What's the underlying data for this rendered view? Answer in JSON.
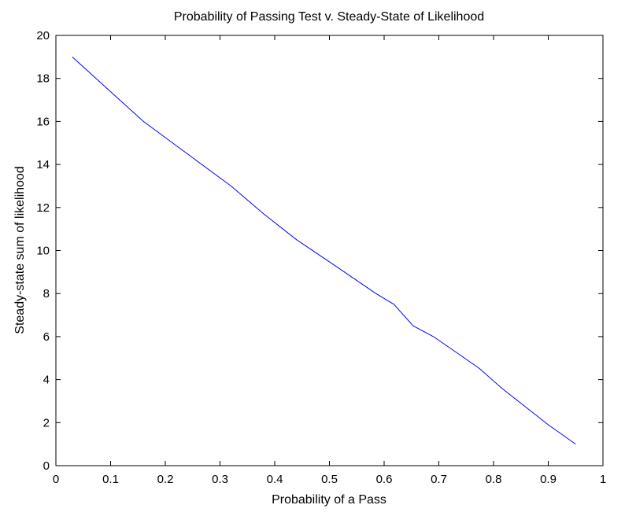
{
  "chart_data": {
    "type": "line",
    "title": "Probability of Passing Test v. Steady-State of Likelihood",
    "xlabel": "Probability of a Pass",
    "ylabel": "Steady-state sum of likelihood",
    "xlim": [
      0,
      1
    ],
    "ylim": [
      0,
      20
    ],
    "xticks": [
      0,
      0.1,
      0.2,
      0.3,
      0.4,
      0.5,
      0.6,
      0.7,
      0.8,
      0.9,
      1
    ],
    "xtick_labels": [
      "0",
      "0.1",
      "0.2",
      "0.3",
      "0.4",
      "0.5",
      "0.6",
      "0.7",
      "0.8",
      "0.9",
      "1"
    ],
    "yticks": [
      0,
      2,
      4,
      6,
      8,
      10,
      12,
      14,
      16,
      18,
      20
    ],
    "ytick_labels": [
      "0",
      "2",
      "4",
      "6",
      "8",
      "10",
      "12",
      "14",
      "16",
      "18",
      "20"
    ],
    "grid": false,
    "series": [
      {
        "color": "#0000ff",
        "x": [
          0.03,
          0.095,
          0.16,
          0.24,
          0.32,
          0.38,
          0.44,
          0.51,
          0.585,
          0.618,
          0.653,
          0.69,
          0.73,
          0.775,
          0.815,
          0.855,
          0.9,
          0.95
        ],
        "y": [
          19.0,
          17.5,
          16.0,
          14.5,
          13.0,
          11.7,
          10.5,
          9.3,
          8.0,
          7.5,
          6.5,
          6.0,
          5.3,
          4.5,
          3.6,
          2.8,
          1.9,
          1.0
        ]
      }
    ]
  }
}
